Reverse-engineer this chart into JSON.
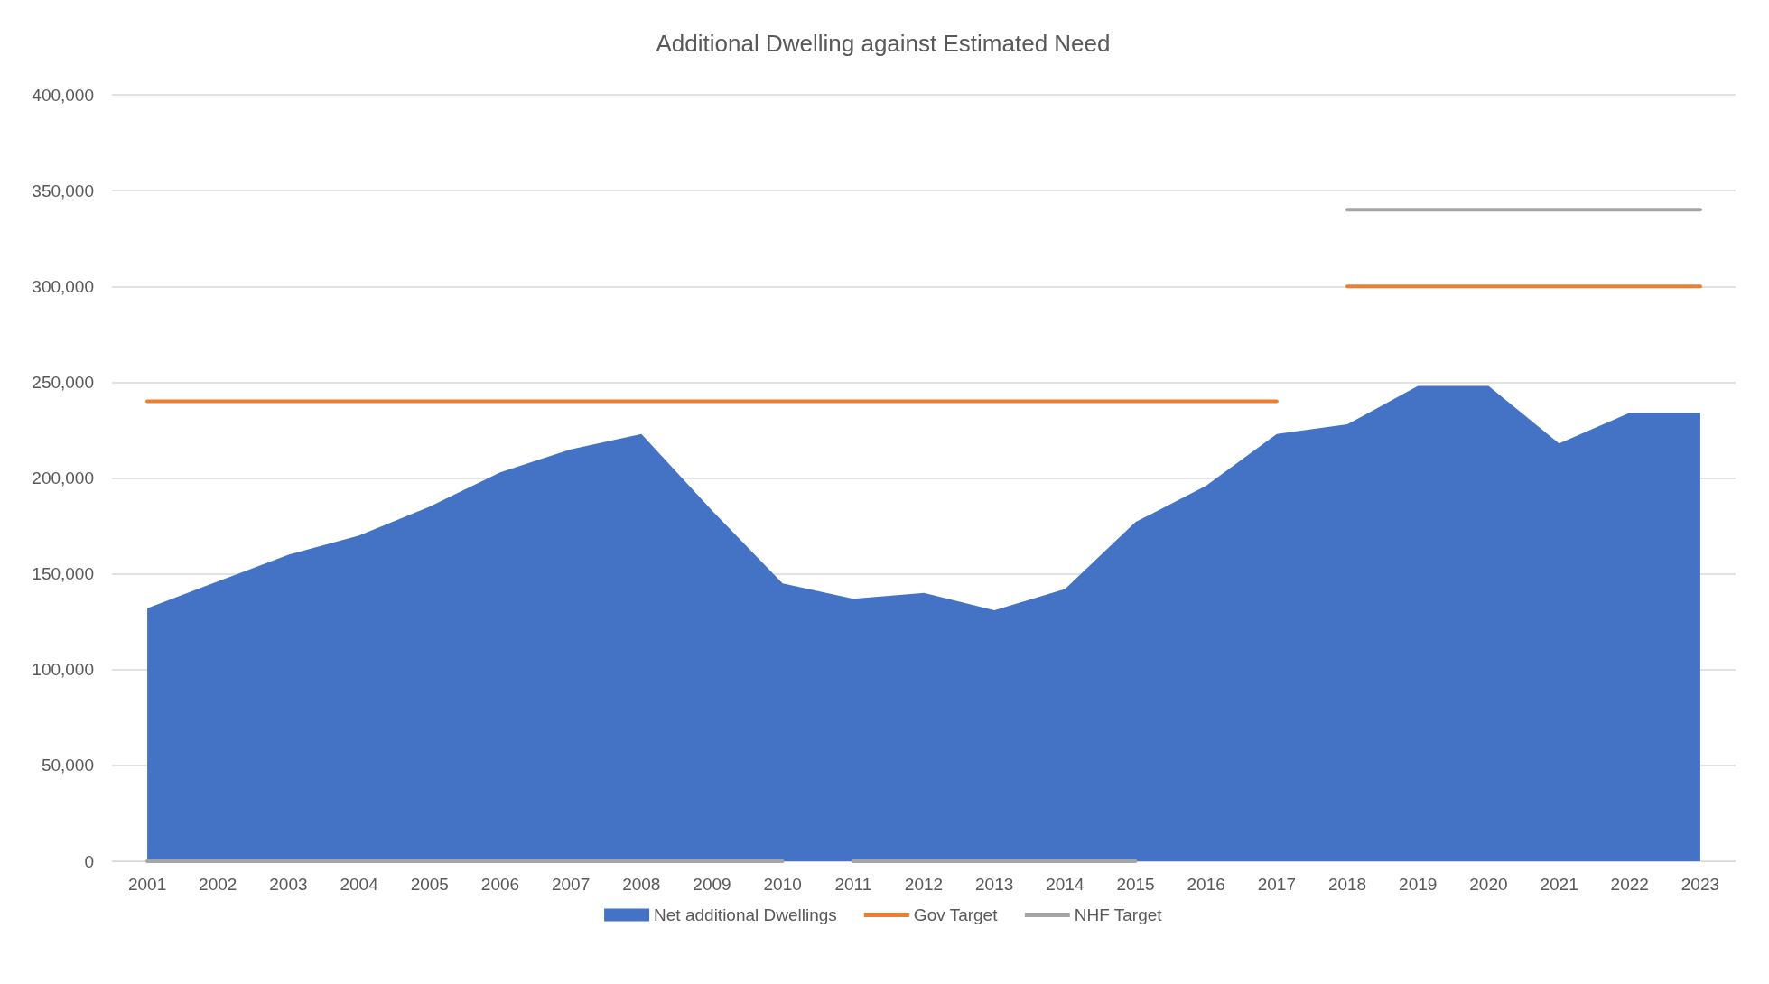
{
  "chart_data": {
    "type": "area",
    "title": "Additional Dwelling against Estimated Need",
    "categories": [
      "2001",
      "2002",
      "2003",
      "2004",
      "2005",
      "2006",
      "2007",
      "2008",
      "2009",
      "2010",
      "2011",
      "2012",
      "2013",
      "2014",
      "2015",
      "2016",
      "2017",
      "2018",
      "2019",
      "2020",
      "2021",
      "2022",
      "2023"
    ],
    "series": [
      {
        "name": "Net additional Dwellings",
        "color": "#4472c4",
        "values": [
          132000,
          146000,
          160000,
          170000,
          185000,
          203000,
          215000,
          223000,
          183000,
          145000,
          137000,
          140000,
          131000,
          142000,
          177000,
          196000,
          223000,
          228000,
          248000,
          248000,
          218000,
          234000,
          234000
        ]
      },
      {
        "name": "Gov Target",
        "type": "line",
        "color": "#ed7d31",
        "values": [
          240000,
          240000,
          240000,
          240000,
          240000,
          240000,
          240000,
          240000,
          240000,
          240000,
          240000,
          240000,
          240000,
          240000,
          240000,
          240000,
          240000,
          null,
          null,
          null,
          null,
          null,
          null
        ]
      },
      {
        "type": "line",
        "color": "#ed7d31",
        "values": [
          null,
          null,
          null,
          null,
          null,
          null,
          null,
          null,
          null,
          null,
          null,
          null,
          null,
          null,
          null,
          null,
          null,
          300000,
          300000,
          300000,
          300000,
          300000,
          300000
        ]
      },
      {
        "name": "NHF Target",
        "type": "line",
        "color": "#a5a5a5",
        "values": [
          0,
          0,
          0,
          0,
          0,
          0,
          0,
          0,
          0,
          0,
          null,
          null,
          null,
          null,
          null,
          null,
          null,
          null,
          null,
          null,
          null,
          null,
          null
        ]
      },
      {
        "type": "line",
        "color": "#a5a5a5",
        "values": [
          null,
          null,
          null,
          null,
          null,
          null,
          null,
          null,
          null,
          null,
          0,
          0,
          0,
          0,
          0,
          null,
          null,
          null,
          null,
          null,
          null,
          null,
          null
        ]
      },
      {
        "type": "line",
        "color": "#a5a5a5",
        "values": [
          null,
          null,
          null,
          null,
          null,
          null,
          null,
          null,
          null,
          null,
          null,
          null,
          null,
          null,
          null,
          null,
          null,
          340000,
          340000,
          340000,
          340000,
          340000,
          340000
        ]
      }
    ],
    "ylim": [
      0,
      400000
    ],
    "yticks": [
      0,
      {
        "value": 50000,
        "label": "50,000"
      },
      {
        "value": 100000,
        "label": "100,000"
      },
      {
        "value": 150000,
        "label": "150,000"
      },
      {
        "value": 200000,
        "label": "200,000"
      },
      {
        "value": 250000,
        "label": "250,000"
      },
      {
        "value": 300000,
        "label": "300,000"
      },
      {
        "value": 350000,
        "label": "350,000"
      },
      {
        "value": 400000,
        "label": "400,000"
      }
    ],
    "grid": "y",
    "legend": "bottom",
    "marker": "none",
    "line_style": "solid"
  }
}
